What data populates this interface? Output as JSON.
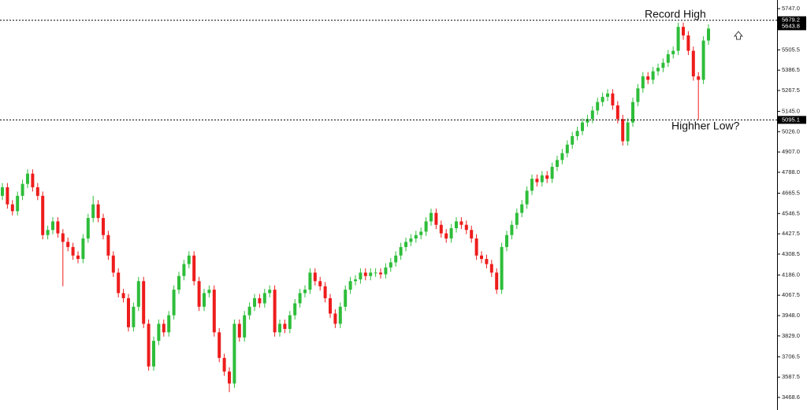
{
  "chart_data": {
    "type": "candlestick",
    "up_color": "#2ebd3a",
    "down_color": "#ee1c1c",
    "ylim": [
      3468.6,
      5747.0
    ],
    "yticks": [
      {
        "value": 5747.0,
        "label": "5747.0"
      },
      5505.5,
      5386.5,
      5267.5,
      {
        "value": 5145.0,
        "label": "5145.0"
      },
      {
        "value": 5026.0,
        "label": "5026.0"
      },
      {
        "value": 4907.0,
        "label": "4907.0"
      },
      {
        "value": 4788.0,
        "label": "4788.0"
      },
      4665.5,
      4546.5,
      4427.5,
      4308.5,
      {
        "value": 4186.0,
        "label": "4186.0"
      },
      4067.5,
      {
        "value": 3948.0,
        "label": "3948.0"
      },
      {
        "value": 3829.0,
        "label": "3829.0"
      },
      3706.5,
      3587.5,
      3468.6
    ],
    "annotations": [
      {
        "text": "Record High",
        "value": 5679.2
      },
      {
        "text": "Highher Low?",
        "value": 5095.1
      }
    ],
    "last_price": 5643.8,
    "open": [
      4650,
      4700,
      4600,
      4560,
      4650,
      4720,
      4780,
      4700,
      4650,
      4420,
      4450,
      4500,
      4430,
      4380,
      4350,
      4300,
      4280,
      4400,
      4520,
      4600,
      4520,
      4420,
      4300,
      4200,
      4080,
      4050,
      3880,
      4000,
      4150,
      3900,
      3650,
      3800,
      3900,
      3850,
      3950,
      4100,
      4180,
      4250,
      4300,
      4150,
      4000,
      4080,
      4100,
      3850,
      3700,
      3620,
      3550,
      3900,
      3820,
      3950,
      4000,
      4050,
      4020,
      4080,
      4100,
      3850,
      3900,
      3870,
      3950,
      4020,
      4080,
      4100,
      4200,
      4150,
      4120,
      4050,
      3960,
      3900,
      4000,
      4100,
      4150,
      4160,
      4200,
      4180,
      4200,
      4200,
      4190,
      4230,
      4260,
      4300,
      4350,
      4380,
      4400,
      4420,
      4440,
      4500,
      4550,
      4480,
      4430,
      4400,
      4460,
      4500,
      4480,
      4450,
      4400,
      4300,
      4280,
      4250,
      4200,
      4100,
      4350,
      4420,
      4480,
      4550,
      4600,
      4680,
      4750,
      4730,
      4770,
      4750,
      4820,
      4860,
      4900,
      4950,
      5000,
      5030,
      5080,
      5100,
      5150,
      5200,
      5230,
      5250,
      5180,
      5100,
      4970,
      5080,
      5200,
      5280,
      5350,
      5330,
      5380,
      5400,
      5430,
      5480,
      5500,
      5640,
      5590,
      5500,
      5350,
      5330,
      5560
    ],
    "high": [
      4725,
      4725,
      4625,
      4675,
      4745,
      4805,
      4805,
      4725,
      4675,
      4475,
      4525,
      4525,
      4455,
      4405,
      4375,
      4325,
      4425,
      4545,
      4650,
      4625,
      4545,
      4445,
      4325,
      4225,
      4105,
      4075,
      4025,
      4175,
      4175,
      3925,
      3825,
      3925,
      3925,
      3975,
      4125,
      4205,
      4275,
      4325,
      4325,
      4175,
      4105,
      4125,
      4125,
      3875,
      3725,
      3645,
      3925,
      3925,
      3975,
      4025,
      4075,
      4075,
      4105,
      4125,
      4125,
      3925,
      3925,
      3975,
      4045,
      4105,
      4125,
      4225,
      4225,
      4175,
      4145,
      4075,
      3985,
      4025,
      4125,
      4175,
      4185,
      4225,
      4225,
      4225,
      4225,
      4225,
      4255,
      4285,
      4325,
      4375,
      4405,
      4425,
      4445,
      4465,
      4525,
      4575,
      4575,
      4505,
      4455,
      4485,
      4525,
      4525,
      4505,
      4475,
      4425,
      4325,
      4305,
      4275,
      4225,
      4375,
      4445,
      4505,
      4575,
      4625,
      4705,
      4775,
      4775,
      4795,
      4795,
      4845,
      4885,
      4925,
      4975,
      5025,
      5055,
      5105,
      5125,
      5175,
      5225,
      5255,
      5275,
      5275,
      5205,
      5125,
      5105,
      5225,
      5305,
      5375,
      5375,
      5405,
      5425,
      5455,
      5505,
      5525,
      5665,
      5665,
      5615,
      5525,
      5375,
      5585,
      5655
    ],
    "low": [
      4625,
      4575,
      4535,
      4535,
      4625,
      4695,
      4675,
      4625,
      4395,
      4395,
      4425,
      4405,
      4120,
      4325,
      4275,
      4255,
      4255,
      4375,
      4495,
      4495,
      4395,
      4275,
      4175,
      4055,
      4025,
      3855,
      3855,
      3975,
      3875,
      3625,
      3625,
      3775,
      3825,
      3825,
      3925,
      4075,
      4155,
      4225,
      4125,
      3975,
      3975,
      4055,
      3825,
      3675,
      3595,
      3500,
      3525,
      3795,
      3795,
      3925,
      3975,
      3995,
      3995,
      4055,
      3825,
      3825,
      3845,
      3845,
      3925,
      3995,
      4055,
      4075,
      4125,
      4095,
      4025,
      3935,
      3875,
      3875,
      3975,
      4075,
      4125,
      4135,
      4155,
      4155,
      4175,
      4165,
      4165,
      4205,
      4235,
      4275,
      4325,
      4355,
      4375,
      4395,
      4415,
      4475,
      4455,
      4405,
      4375,
      4375,
      4435,
      4455,
      4425,
      4375,
      4275,
      4255,
      4225,
      4175,
      4075,
      4075,
      4325,
      4395,
      4455,
      4525,
      4575,
      4655,
      4705,
      4705,
      4725,
      4725,
      4795,
      4835,
      4875,
      4925,
      4975,
      5005,
      5055,
      5075,
      5125,
      5175,
      5205,
      5155,
      5075,
      4945,
      4945,
      5055,
      5175,
      5255,
      5305,
      5305,
      5355,
      5375,
      5405,
      5455,
      5475,
      5565,
      5475,
      5325,
      5095,
      5305,
      5535
    ],
    "close": [
      4700,
      4600,
      4560,
      4650,
      4720,
      4780,
      4700,
      4650,
      4420,
      4450,
      4500,
      4430,
      4380,
      4350,
      4300,
      4280,
      4400,
      4520,
      4600,
      4520,
      4420,
      4300,
      4200,
      4080,
      4050,
      3880,
      4000,
      4150,
      3900,
      3650,
      3800,
      3900,
      3850,
      3950,
      4100,
      4180,
      4250,
      4300,
      4150,
      4000,
      4080,
      4100,
      3850,
      3700,
      3620,
      3550,
      3900,
      3820,
      3950,
      4000,
      4050,
      4020,
      4080,
      4100,
      3850,
      3900,
      3870,
      3950,
      4020,
      4080,
      4100,
      4200,
      4150,
      4120,
      4050,
      3960,
      3900,
      4000,
      4100,
      4150,
      4160,
      4200,
      4180,
      4200,
      4200,
      4190,
      4230,
      4260,
      4300,
      4350,
      4380,
      4400,
      4420,
      4440,
      4500,
      4550,
      4480,
      4430,
      4400,
      4460,
      4500,
      4480,
      4450,
      4400,
      4300,
      4280,
      4250,
      4200,
      4100,
      4350,
      4420,
      4480,
      4550,
      4600,
      4680,
      4750,
      4730,
      4770,
      4750,
      4820,
      4860,
      4900,
      4950,
      5000,
      5030,
      5080,
      5100,
      5150,
      5200,
      5230,
      5250,
      5180,
      5100,
      4970,
      5080,
      5200,
      5280,
      5350,
      5330,
      5380,
      5400,
      5430,
      5480,
      5500,
      5640,
      5590,
      5500,
      5350,
      5330,
      5560,
      5630
    ]
  }
}
